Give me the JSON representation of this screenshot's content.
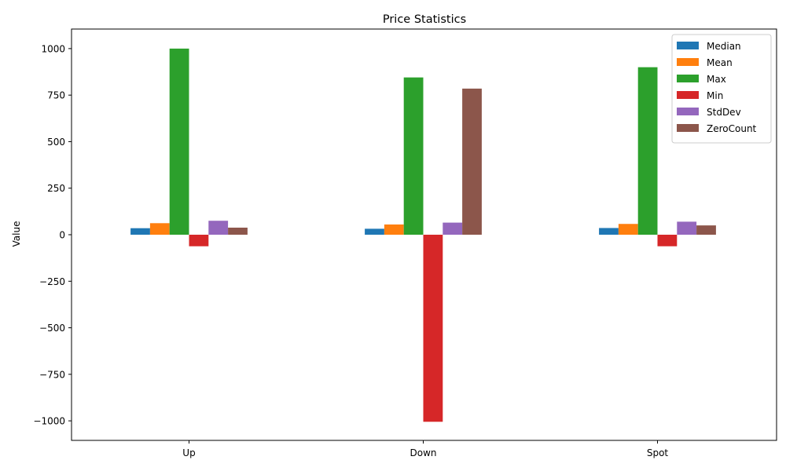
{
  "chart_data": {
    "type": "bar",
    "title": "Price Statistics",
    "xlabel": "",
    "ylabel": "Value",
    "categories": [
      "Up",
      "Down",
      "Spot"
    ],
    "ylim": [
      -1105,
      1105
    ],
    "yticks": [
      -1000,
      -750,
      -500,
      -250,
      0,
      250,
      500,
      750,
      1000
    ],
    "ytick_labels": [
      "−1000",
      "−750",
      "−500",
      "−250",
      "0",
      "250",
      "500",
      "750",
      "1000"
    ],
    "legend_position": "top-right",
    "grid": false,
    "series": [
      {
        "name": "Median",
        "color": "#1f77b4",
        "values": [
          35,
          32,
          36
        ]
      },
      {
        "name": "Mean",
        "color": "#ff7f0e",
        "values": [
          62,
          55,
          58
        ]
      },
      {
        "name": "Max",
        "color": "#2ca02c",
        "values": [
          1000,
          845,
          900
        ]
      },
      {
        "name": "Min",
        "color": "#d62728",
        "values": [
          -62,
          -1005,
          -62
        ]
      },
      {
        "name": "StdDev",
        "color": "#9467bd",
        "values": [
          75,
          65,
          70
        ]
      },
      {
        "name": "ZeroCount",
        "color": "#8c564b",
        "values": [
          38,
          785,
          50
        ]
      }
    ]
  }
}
